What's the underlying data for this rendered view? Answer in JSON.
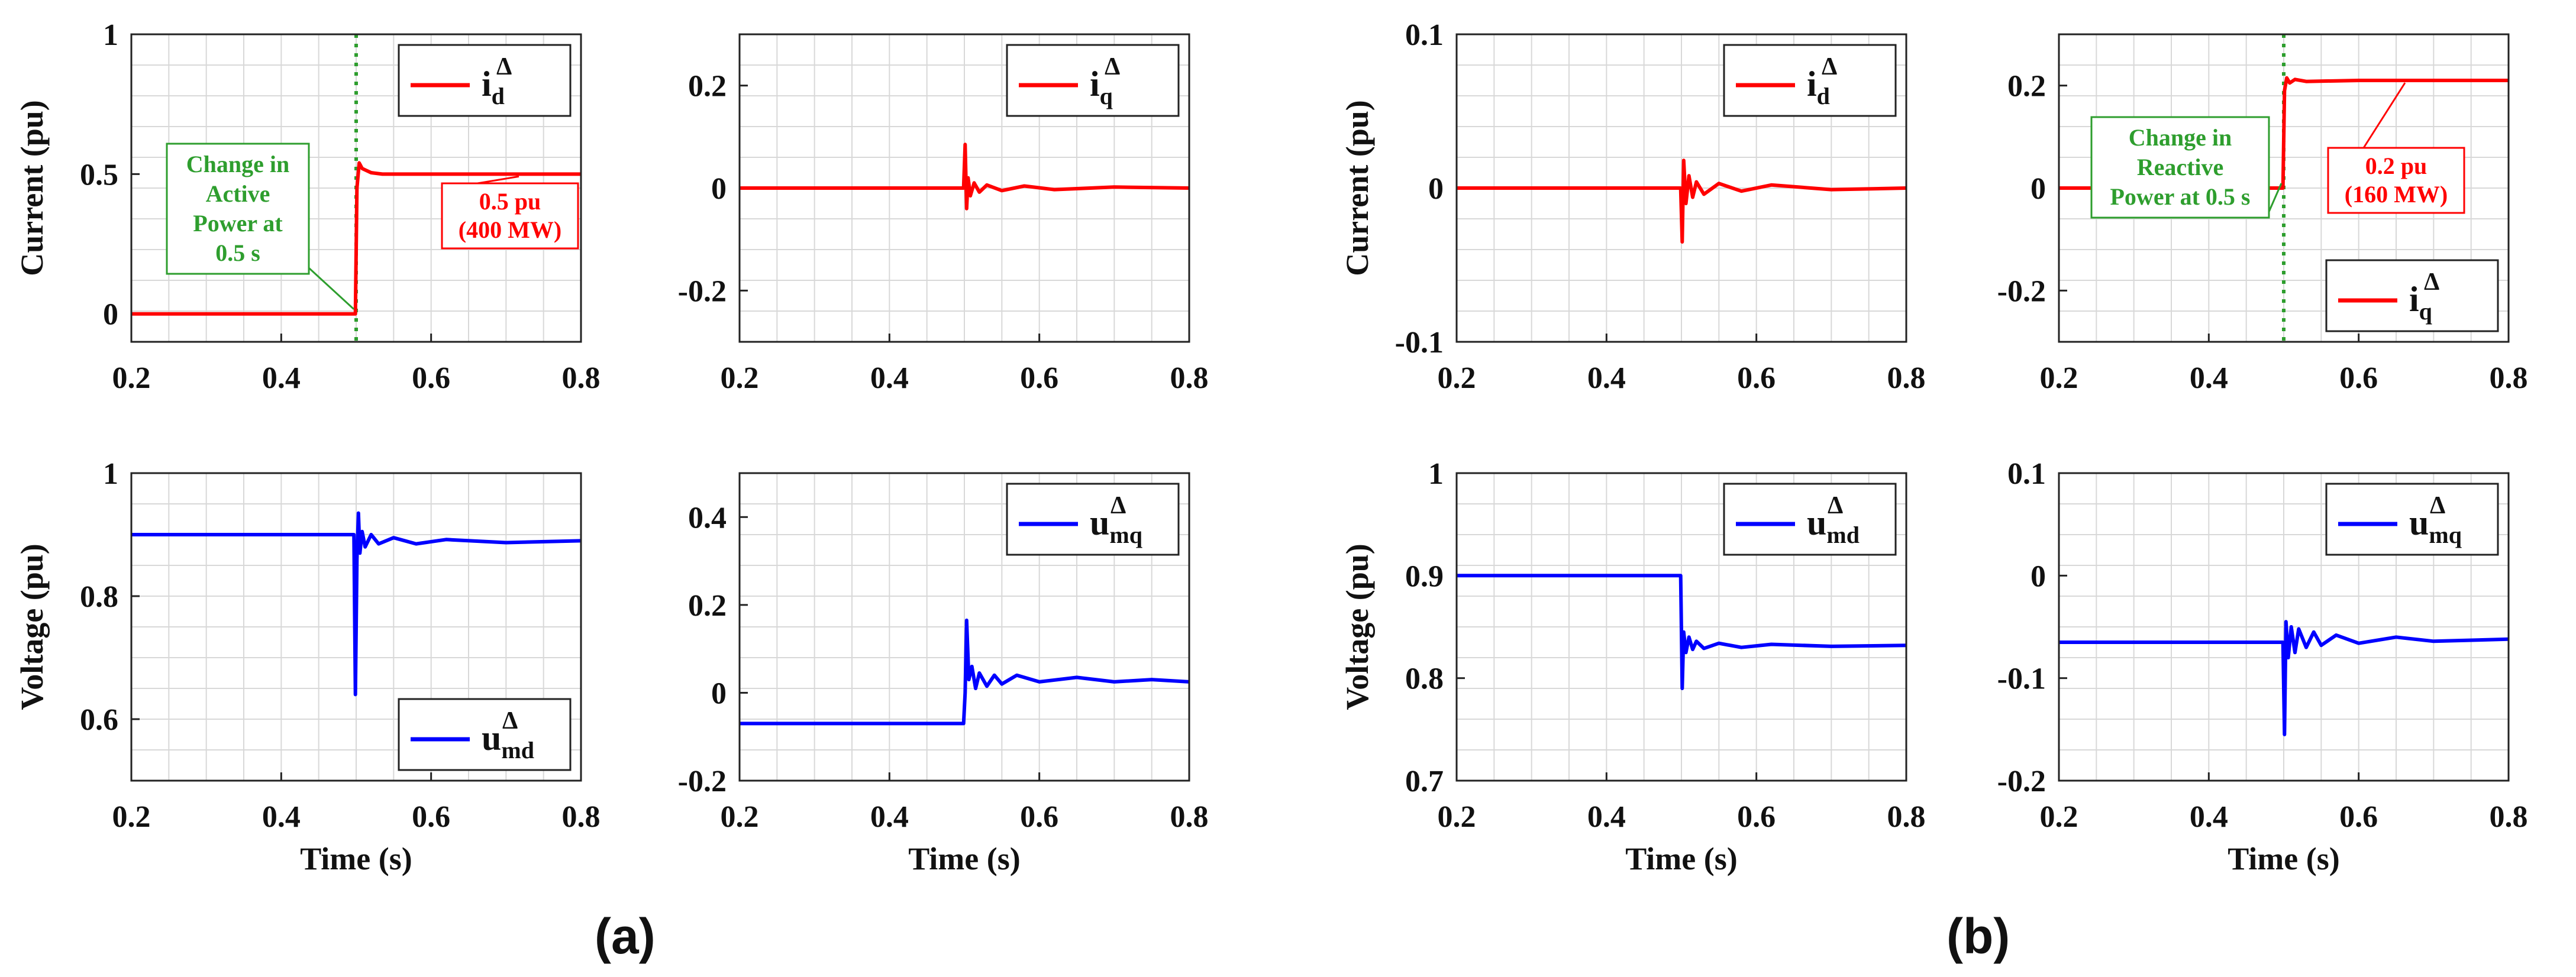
{
  "figure_labels": [
    "(a)",
    "(b)"
  ],
  "colors": {
    "current": "#ff0000",
    "voltage": "#0000ff",
    "event": "#2e9e2e",
    "annotation": "#ff0000"
  },
  "chart_data": [
    {
      "type": "line",
      "panel": "a",
      "position": "top-left",
      "ylabel": "Current (pu)",
      "xlabel": "",
      "xlim": [
        0.2,
        0.8
      ],
      "ylim": [
        -0.1,
        1
      ],
      "xticks": [
        0.2,
        0.4,
        0.6,
        0.8
      ],
      "xtick_labels": [
        "0.2",
        "0.4",
        "0.6",
        "0.8"
      ],
      "yticks": [
        0,
        0.5,
        1
      ],
      "ytick_labels": [
        "0",
        "0.5",
        "1"
      ],
      "legend": {
        "base": "i",
        "sub": "d",
        "sup": "Δ",
        "placement": "top-right"
      },
      "event_line": {
        "x": 0.5,
        "label_lines": [
          "Change in",
          "Active",
          "Power at",
          "0.5 s"
        ]
      },
      "value_note": {
        "lines": [
          "0.5 pu",
          "(400 MW)"
        ]
      },
      "series": [
        {
          "name": "id",
          "color": "#ff0000",
          "x": [
            0.2,
            0.499,
            0.501,
            0.504,
            0.508,
            0.512,
            0.52,
            0.535,
            0.6,
            0.8
          ],
          "y": [
            0,
            0,
            0.45,
            0.54,
            0.52,
            0.515,
            0.505,
            0.5,
            0.5,
            0.5
          ]
        }
      ]
    },
    {
      "type": "line",
      "panel": "a",
      "position": "top-right",
      "ylabel": "",
      "xlabel": "",
      "xlim": [
        0.2,
        0.8
      ],
      "ylim": [
        -0.3,
        0.3
      ],
      "xticks": [
        0.2,
        0.4,
        0.6,
        0.8
      ],
      "xtick_labels": [
        "0.2",
        "0.4",
        "0.6",
        "0.8"
      ],
      "yticks": [
        -0.2,
        0,
        0.2
      ],
      "ytick_labels": [
        "-0.2",
        "0",
        "0.2"
      ],
      "legend": {
        "base": "i",
        "sub": "q",
        "sup": "Δ",
        "placement": "top-right"
      },
      "series": [
        {
          "name": "iq",
          "color": "#ff0000",
          "x": [
            0.2,
            0.499,
            0.501,
            0.503,
            0.505,
            0.508,
            0.513,
            0.52,
            0.53,
            0.55,
            0.58,
            0.62,
            0.7,
            0.8
          ],
          "y": [
            0,
            0,
            0.085,
            -0.04,
            0.02,
            -0.015,
            0.01,
            -0.008,
            0.006,
            -0.005,
            0.004,
            -0.003,
            0.002,
            0
          ]
        }
      ]
    },
    {
      "type": "line",
      "panel": "a",
      "position": "bottom-left",
      "ylabel": "Voltage (pu)",
      "xlabel": "Time (s)",
      "xlim": [
        0.2,
        0.8
      ],
      "ylim": [
        0.5,
        1
      ],
      "xticks": [
        0.2,
        0.4,
        0.6,
        0.8
      ],
      "xtick_labels": [
        "0.2",
        "0.4",
        "0.6",
        "0.8"
      ],
      "yticks": [
        0.6,
        0.8,
        1
      ],
      "ytick_labels": [
        "0.6",
        "0.8",
        "1"
      ],
      "legend": {
        "base": "u",
        "sub": "md",
        "sup": "Δ",
        "placement": "bottom-right"
      },
      "series": [
        {
          "name": "umd",
          "color": "#0000ff",
          "x": [
            0.2,
            0.497,
            0.499,
            0.501,
            0.503,
            0.505,
            0.508,
            0.512,
            0.52,
            0.53,
            0.55,
            0.58,
            0.62,
            0.7,
            0.8
          ],
          "y": [
            0.9,
            0.9,
            0.64,
            0.86,
            0.935,
            0.87,
            0.905,
            0.88,
            0.9,
            0.885,
            0.895,
            0.885,
            0.892,
            0.887,
            0.89
          ]
        }
      ]
    },
    {
      "type": "line",
      "panel": "a",
      "position": "bottom-right",
      "ylabel": "",
      "xlabel": "Time (s)",
      "xlim": [
        0.2,
        0.8
      ],
      "ylim": [
        -0.2,
        0.5
      ],
      "xticks": [
        0.2,
        0.4,
        0.6,
        0.8
      ],
      "xtick_labels": [
        "0.2",
        "0.4",
        "0.6",
        "0.8"
      ],
      "yticks": [
        -0.2,
        0,
        0.2,
        0.4
      ],
      "ytick_labels": [
        "-0.2",
        "0",
        "0.2",
        "0.4"
      ],
      "legend": {
        "base": "u",
        "sub": "mq",
        "sup": "Δ",
        "placement": "top-right"
      },
      "series": [
        {
          "name": "umq",
          "color": "#0000ff",
          "x": [
            0.2,
            0.499,
            0.501,
            0.503,
            0.506,
            0.51,
            0.515,
            0.52,
            0.53,
            0.54,
            0.55,
            0.57,
            0.6,
            0.65,
            0.7,
            0.75,
            0.8
          ],
          "y": [
            -0.07,
            -0.07,
            0.0,
            0.165,
            0.03,
            0.06,
            0.01,
            0.045,
            0.015,
            0.04,
            0.02,
            0.04,
            0.025,
            0.035,
            0.025,
            0.03,
            0.025
          ]
        }
      ]
    },
    {
      "type": "line",
      "panel": "b",
      "position": "top-left",
      "ylabel": "Current (pu)",
      "xlabel": "",
      "xlim": [
        0.2,
        0.8
      ],
      "ylim": [
        -0.1,
        0.1
      ],
      "xticks": [
        0.2,
        0.4,
        0.6,
        0.8
      ],
      "xtick_labels": [
        "0.2",
        "0.4",
        "0.6",
        "0.8"
      ],
      "yticks": [
        -0.1,
        0,
        0.1
      ],
      "ytick_labels": [
        "-0.1",
        "0",
        "0.1"
      ],
      "legend": {
        "base": "i",
        "sub": "d",
        "sup": "Δ",
        "placement": "top-right"
      },
      "series": [
        {
          "name": "id",
          "color": "#ff0000",
          "x": [
            0.2,
            0.499,
            0.501,
            0.503,
            0.506,
            0.51,
            0.515,
            0.52,
            0.53,
            0.55,
            0.58,
            0.62,
            0.7,
            0.8
          ],
          "y": [
            0,
            0,
            -0.035,
            0.018,
            -0.01,
            0.008,
            -0.006,
            0.004,
            -0.004,
            0.003,
            -0.002,
            0.002,
            -0.001,
            0
          ]
        }
      ]
    },
    {
      "type": "line",
      "panel": "b",
      "position": "top-right",
      "ylabel": "",
      "xlabel": "",
      "xlim": [
        0.2,
        0.8
      ],
      "ylim": [
        -0.3,
        0.3
      ],
      "xticks": [
        0.2,
        0.4,
        0.6,
        0.8
      ],
      "xtick_labels": [
        "0.2",
        "0.4",
        "0.6",
        "0.8"
      ],
      "yticks": [
        -0.2,
        0,
        0.2
      ],
      "ytick_labels": [
        "-0.2",
        "0",
        "0.2"
      ],
      "legend": {
        "base": "i",
        "sub": "q",
        "sup": "Δ",
        "placement": "bottom-right"
      },
      "event_line": {
        "x": 0.5,
        "label_lines": [
          "Change in",
          "Reactive",
          "Power at 0.5 s"
        ]
      },
      "value_note": {
        "lines": [
          "0.2 pu",
          "(160 MW)"
        ]
      },
      "series": [
        {
          "name": "iq",
          "color": "#ff0000",
          "x": [
            0.2,
            0.499,
            0.501,
            0.504,
            0.508,
            0.515,
            0.53,
            0.6,
            0.8
          ],
          "y": [
            0,
            0,
            0.19,
            0.215,
            0.205,
            0.212,
            0.208,
            0.21,
            0.21
          ]
        }
      ]
    },
    {
      "type": "line",
      "panel": "b",
      "position": "bottom-left",
      "ylabel": "Voltage (pu)",
      "xlabel": "Time (s)",
      "xlim": [
        0.2,
        0.8
      ],
      "ylim": [
        0.7,
        1
      ],
      "xticks": [
        0.2,
        0.4,
        0.6,
        0.8
      ],
      "xtick_labels": [
        "0.2",
        "0.4",
        "0.6",
        "0.8"
      ],
      "yticks": [
        0.7,
        0.8,
        0.9,
        1
      ],
      "ytick_labels": [
        "0.7",
        "0.8",
        "0.9",
        "1"
      ],
      "legend": {
        "base": "u",
        "sub": "md",
        "sup": "Δ",
        "placement": "top-right"
      },
      "series": [
        {
          "name": "umd",
          "color": "#0000ff",
          "x": [
            0.2,
            0.499,
            0.501,
            0.503,
            0.506,
            0.51,
            0.515,
            0.52,
            0.53,
            0.55,
            0.58,
            0.62,
            0.7,
            0.8
          ],
          "y": [
            0.9,
            0.9,
            0.79,
            0.845,
            0.825,
            0.84,
            0.828,
            0.836,
            0.829,
            0.834,
            0.83,
            0.833,
            0.831,
            0.832
          ]
        }
      ]
    },
    {
      "type": "line",
      "panel": "b",
      "position": "bottom-right",
      "ylabel": "",
      "xlabel": "Time (s)",
      "xlim": [
        0.2,
        0.8
      ],
      "ylim": [
        -0.2,
        0.1
      ],
      "xticks": [
        0.2,
        0.4,
        0.6,
        0.8
      ],
      "xtick_labels": [
        "0.2",
        "0.4",
        "0.6",
        "0.8"
      ],
      "yticks": [
        -0.2,
        -0.1,
        0,
        0.1
      ],
      "ytick_labels": [
        "-0.2",
        "-0.1",
        "0",
        "0.1"
      ],
      "legend": {
        "base": "u",
        "sub": "mq",
        "sup": "Δ",
        "placement": "top-right"
      },
      "series": [
        {
          "name": "umq",
          "color": "#0000ff",
          "x": [
            0.2,
            0.499,
            0.501,
            0.503,
            0.506,
            0.51,
            0.515,
            0.52,
            0.53,
            0.54,
            0.55,
            0.57,
            0.6,
            0.65,
            0.7,
            0.8
          ],
          "y": [
            -0.065,
            -0.065,
            -0.155,
            -0.045,
            -0.08,
            -0.05,
            -0.075,
            -0.052,
            -0.07,
            -0.055,
            -0.068,
            -0.058,
            -0.066,
            -0.06,
            -0.064,
            -0.062
          ]
        }
      ]
    }
  ]
}
